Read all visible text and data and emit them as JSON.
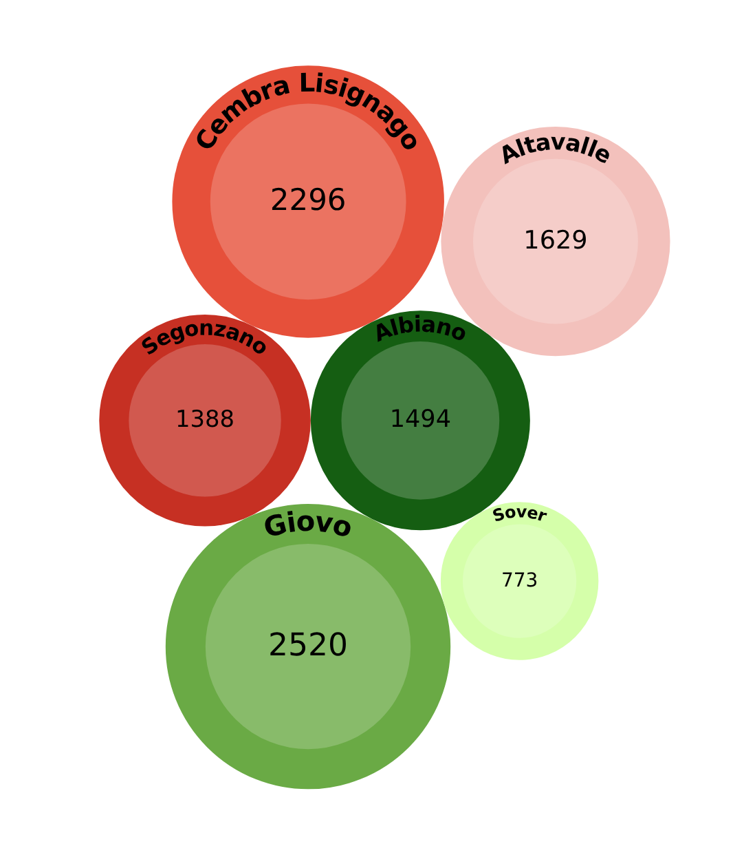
{
  "chart_data": {
    "type": "other",
    "categories": [
      "Segonzano",
      "Albiano",
      "Giovo",
      "Cembra Lisignago",
      "Sover",
      "Altavalle"
    ],
    "values": [
      1388,
      1494,
      2520,
      2296,
      773,
      1629
    ],
    "colors": [
      "#d1594f",
      "#447e41",
      "#88bb6a",
      "#eb7361",
      "#ddffbb",
      "#f5cdc9"
    ],
    "data_labels": true
  }
}
